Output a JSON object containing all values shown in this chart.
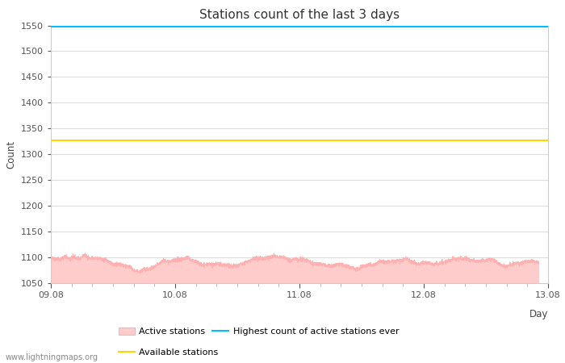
{
  "title": "Stations count of the last 3 days",
  "xlabel": "Day",
  "ylabel": "Count",
  "ylim": [
    1050,
    1550
  ],
  "yticks": [
    1050,
    1100,
    1150,
    1200,
    1250,
    1300,
    1350,
    1400,
    1450,
    1500,
    1550
  ],
  "x_start": 0,
  "x_end": 4320,
  "x_tick_labels": [
    "09.08",
    "10.08",
    "11.08",
    "12.08",
    "13.08"
  ],
  "x_tick_positions": [
    0,
    1080,
    2160,
    3240,
    4320
  ],
  "active_stations_base": 1090,
  "available_stations_value": 1327,
  "highest_ever_value": 1547,
  "active_fill_color": "#FFCCCC",
  "active_line_color": "#FFB0B0",
  "available_color": "#FFD700",
  "highest_ever_color": "#00BFFF",
  "background_color": "#ffffff",
  "grid_color": "#dddddd",
  "watermark": "www.lightningmaps.org",
  "title_fontsize": 11,
  "axis_fontsize": 8.5,
  "tick_fontsize": 8
}
